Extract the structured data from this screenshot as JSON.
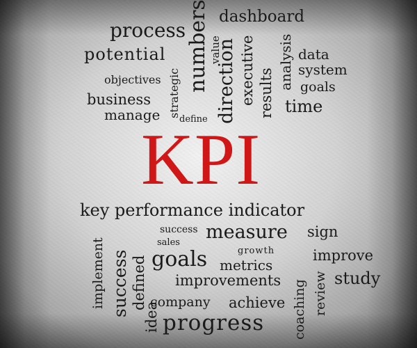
{
  "cloud": {
    "title": "KPI",
    "words": {
      "process": "process",
      "numbers": "numbers",
      "value": "value",
      "dashboard": "dashboard",
      "potential": "potential",
      "strategic": "strategic",
      "direction": "direction",
      "executive": "executive",
      "results": "results",
      "analysis": "analysis",
      "data": "data",
      "system": "system",
      "objectives": "objectives",
      "goals_top": "goals",
      "business": "business",
      "time": "time",
      "manage": "manage",
      "define": "define",
      "kpi_phrase": "key performance indicator",
      "success_small": "success",
      "measure": "measure",
      "sign": "sign",
      "sales": "sales",
      "growth": "growth",
      "implement": "implement",
      "success_vertical": "success",
      "defined": "defined",
      "goals": "goals",
      "metrics": "metrics",
      "improve": "improve",
      "improvements": "improvements",
      "coaching": "coaching",
      "review": "review",
      "study": "study",
      "company": "company",
      "achieve": "achieve",
      "idea": "idea",
      "progress": "progress"
    },
    "colors": {
      "text": "#1a1a1a",
      "accent": "#d01717"
    }
  }
}
